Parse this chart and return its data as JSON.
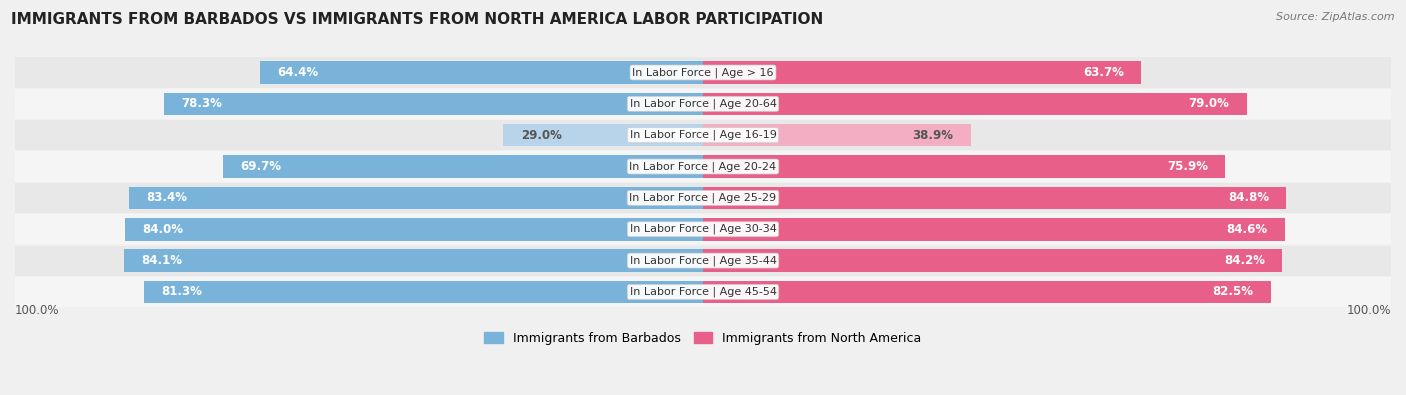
{
  "title": "IMMIGRANTS FROM BARBADOS VS IMMIGRANTS FROM NORTH AMERICA LABOR PARTICIPATION",
  "source": "Source: ZipAtlas.com",
  "categories": [
    "In Labor Force | Age > 16",
    "In Labor Force | Age 20-64",
    "In Labor Force | Age 16-19",
    "In Labor Force | Age 20-24",
    "In Labor Force | Age 25-29",
    "In Labor Force | Age 30-34",
    "In Labor Force | Age 35-44",
    "In Labor Force | Age 45-54"
  ],
  "barbados_values": [
    64.4,
    78.3,
    29.0,
    69.7,
    83.4,
    84.0,
    84.1,
    81.3
  ],
  "north_america_values": [
    63.7,
    79.0,
    38.9,
    75.9,
    84.8,
    84.6,
    84.2,
    82.5
  ],
  "barbados_color": "#7ab3d9",
  "barbados_light_color": "#b8d4ea",
  "north_america_color": "#e8608a",
  "north_america_light_color": "#f4aec4",
  "background_color": "#f0f0f0",
  "row_even_color": "#e8e8e8",
  "row_odd_color": "#f5f5f5",
  "title_fontsize": 11,
  "bar_label_fontsize": 8.5,
  "cat_label_fontsize": 8,
  "legend_fontsize": 9,
  "source_fontsize": 8
}
